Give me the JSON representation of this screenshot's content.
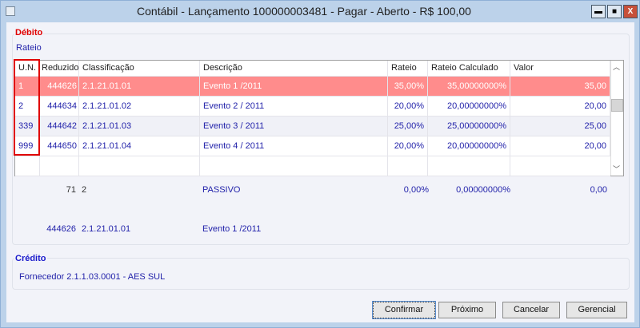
{
  "window": {
    "title": "Contábil - Lançamento 100000003481 - Pagar - Aberto - R$ 100,00",
    "minimize": "▬",
    "maximize": "■",
    "close": "X"
  },
  "debito": {
    "label": "Débito",
    "subtitle": "Rateio",
    "columns": [
      "U.N.",
      "Reduzido",
      "Classificação",
      "Descrição",
      "Rateio",
      "Rateio Calculado",
      "Valor"
    ],
    "rows": [
      [
        "1",
        "444626",
        "2.1.21.01.01",
        "Evento 1 /2011",
        "35,00%",
        "35,00000000%",
        "35,00"
      ],
      [
        "2",
        "444634",
        "2.1.21.01.02",
        "Evento 2 / 2011",
        "20,00%",
        "20,00000000%",
        "20,00"
      ],
      [
        "339",
        "444642",
        "2.1.21.01.03",
        "Evento 3 / 2011",
        "25,00%",
        "25,00000000%",
        "25,00"
      ],
      [
        "999",
        "444650",
        "2.1.21.01.04",
        "Evento 4 / 2011",
        "20,00%",
        "20,00000000%",
        "20,00"
      ]
    ],
    "selected_row": 0,
    "summary": {
      "reduzido": "71",
      "classificacao": "2",
      "descricao": "PASSIVO",
      "rateio": "0,00%",
      "rateio_calculado": "0,00000000%",
      "valor": "0,00"
    },
    "detail": {
      "reduzido": "444626",
      "classificacao": "2.1.21.01.01",
      "descricao": "Evento 1 /2011"
    }
  },
  "credito": {
    "label": "Crédito",
    "text": "Fornecedor 2.1.1.03.0001 - AES SUL"
  },
  "buttons": {
    "confirmar": "Confirmar",
    "proximo": "Próximo",
    "cancelar": "Cancelar",
    "gerencial": "Gerencial"
  },
  "colors": {
    "selected_row": "#ff8c8c",
    "debito_label": "#e00000",
    "credito_label": "#1a1acc",
    "text": "#2222aa",
    "highlight_box": "#e00000"
  }
}
